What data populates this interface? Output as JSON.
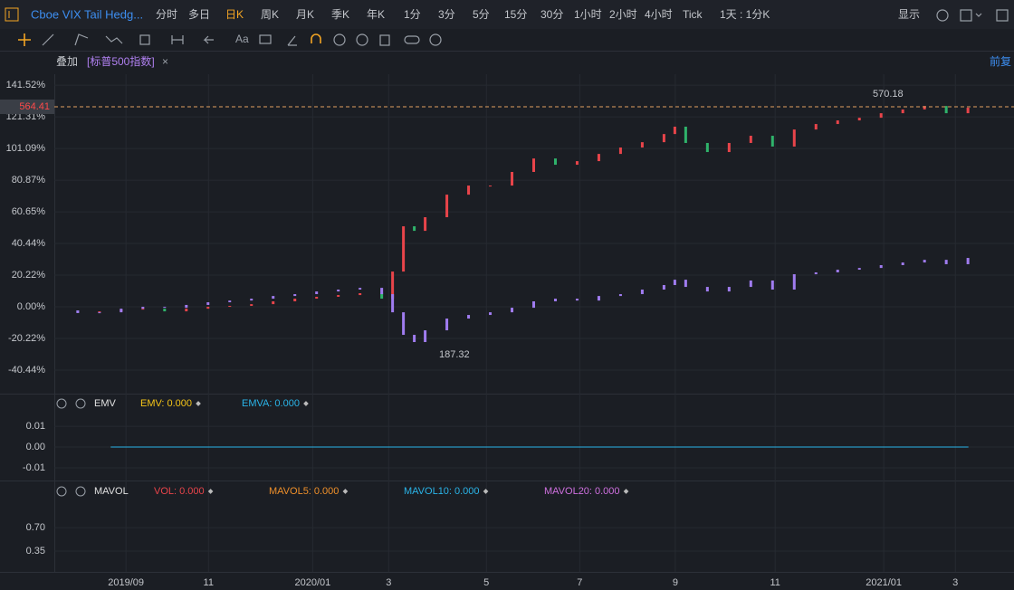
{
  "toolbar": {
    "title": "Cboe VIX Tail Hedg...",
    "periods": [
      "分时",
      "多日",
      "日K",
      "周K",
      "月K",
      "季K",
      "年K",
      "1分",
      "3分",
      "5分",
      "15分",
      "30分",
      "1小时",
      "2小时",
      "4小时",
      "Tick",
      "1天 : 1分K"
    ],
    "active_period": 2,
    "display": "显示",
    "text_tool": "Aa"
  },
  "overlay_bar": {
    "label": "叠加",
    "symbol": "[标普500指数]",
    "close": "×",
    "adjust": "前复"
  },
  "chart_data": {
    "type": "candlestick",
    "x": [
      0,
      10,
      20,
      30,
      40,
      50,
      60,
      70,
      80,
      90,
      100,
      110,
      120,
      130,
      140,
      150,
      155,
      160,
      165,
      170,
      180,
      190,
      200,
      210,
      220,
      230,
      240,
      250,
      260,
      270,
      280,
      285,
      290,
      300,
      310,
      320,
      330,
      340,
      350,
      360,
      370,
      380,
      390,
      400,
      410,
      420
    ],
    "xlim": [
      -1,
      441
    ],
    "xticks": [
      {
        "value": 32,
        "label": "2019/09"
      },
      {
        "value": 70,
        "label": "11"
      },
      {
        "value": 118,
        "label": "2020/01"
      },
      {
        "value": 153,
        "label": "3"
      },
      {
        "value": 198,
        "label": "5"
      },
      {
        "value": 241,
        "label": "7"
      },
      {
        "value": 285,
        "label": "9"
      },
      {
        "value": 331,
        "label": "11"
      },
      {
        "value": 381,
        "label": "2021/01"
      },
      {
        "value": 414,
        "label": "3"
      }
    ],
    "ylim": [
      -53.7,
      148.5
    ],
    "yticks": [
      {
        "value": 141.52,
        "label": "141.52%"
      },
      {
        "value": 121.31,
        "label": "121.31%"
      },
      {
        "value": 101.09,
        "label": "101.09%"
      },
      {
        "value": 80.87,
        "label": "80.87%"
      },
      {
        "value": 60.65,
        "label": "60.65%"
      },
      {
        "value": 40.44,
        "label": "40.44%"
      },
      {
        "value": 20.22,
        "label": "20.22%"
      },
      {
        "value": 0,
        "label": "0.00%"
      },
      {
        "value": -20.22,
        "label": "-20.22%"
      },
      {
        "value": -40.44,
        "label": "-40.44%"
      }
    ],
    "grid": true,
    "up_color": "#e8444a",
    "down_color": "#2fb36b",
    "series": [
      {
        "values": [
          -2.3,
          -3.5,
          -2.9,
          -1.7,
          -1.2,
          -2.9,
          -1.2,
          0,
          0.6,
          1.7,
          3.5,
          5.2,
          6.4,
          7.5,
          8.7,
          5.2,
          22.5,
          51.4,
          48.5,
          57.2,
          71.6,
          77.4,
          77.4,
          86.1,
          94.7,
          90.7,
          93.0,
          97.6,
          101.7,
          105.1,
          110.3,
          115,
          104.6,
          98.8,
          104.6,
          109.2,
          102.3,
          113.2,
          116.7,
          119.0,
          120.7,
          123.6,
          126.0,
          128.2,
          123.6,
          127.1
        ]
      },
      {
        "color": "#a07cf0",
        "values": [
          -2.3,
          -4,
          -3.5,
          -1.2,
          0,
          -0.6,
          1.2,
          2.9,
          4,
          5.2,
          6.9,
          8.1,
          9.8,
          11,
          12.1,
          8.1,
          -3.5,
          -17.9,
          -22.5,
          -15,
          -7.5,
          -5.2,
          -3.5,
          -0.6,
          3.5,
          5.2,
          4,
          6.9,
          8.1,
          11,
          13.9,
          17.3,
          12.7,
          9.8,
          12.7,
          16.8,
          11,
          20.8,
          22,
          23.7,
          24.8,
          26.6,
          28.3,
          30,
          27.2,
          31.2
        ]
      }
    ],
    "price_line": {
      "value": 127.7,
      "label": "564.41"
    },
    "annotations": [
      "570.18",
      "187.32"
    ]
  },
  "emv_panel": {
    "name": "EMV",
    "ylim": [
      -0.0148,
      0.0157
    ],
    "yticks": [
      {
        "value": 0.01,
        "label": "0.01"
      },
      {
        "value": 0,
        "label": "0.00"
      },
      {
        "value": -0.01,
        "label": "-0.01"
      }
    ],
    "legend": [
      {
        "name": "EMV:",
        "value": 0,
        "value_label": "0.000",
        "color": "#f5c518"
      },
      {
        "name": "EMVA:",
        "value": 0,
        "value_label": "0.000",
        "color": "#2ab4e8"
      }
    ]
  },
  "mavol_panel": {
    "name": "MAVOL",
    "ylim": [
      0.04,
      1.08
    ],
    "yticks": [
      {
        "value": 0.7,
        "label": "0.70"
      },
      {
        "value": 0.35,
        "label": "0.35"
      }
    ],
    "legend": [
      {
        "name": "VOL:",
        "value": 0,
        "value_label": "0.000",
        "color": "#e8444a"
      },
      {
        "name": "MAVOL5:",
        "value": 0,
        "value_label": "0.000",
        "color": "#f0902a"
      },
      {
        "name": "MAVOL10:",
        "value": 0,
        "value_label": "0.000",
        "color": "#2ab4e8"
      },
      {
        "name": "MAVOL20:",
        "value": 0,
        "value_label": "0.000",
        "color": "#d070e0"
      }
    ]
  }
}
